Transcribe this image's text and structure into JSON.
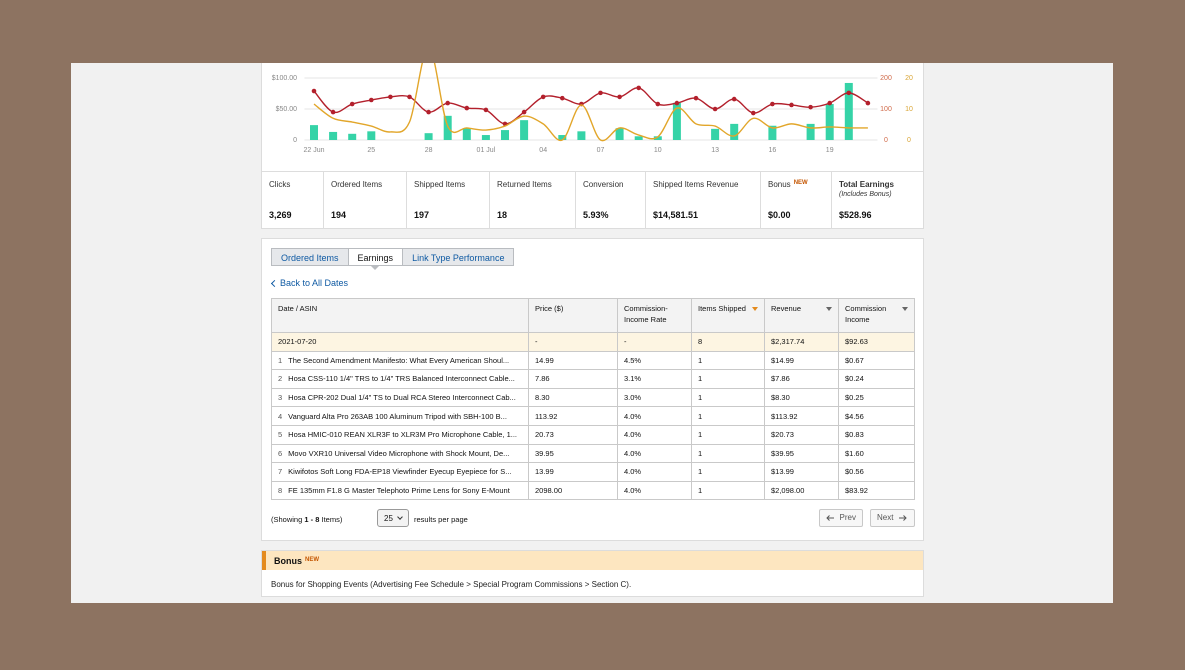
{
  "chart_data": {
    "type": "combo",
    "categories": [
      "22 Jun",
      null,
      null,
      "25",
      null,
      null,
      "28",
      null,
      null,
      "01 Jul",
      null,
      null,
      "04",
      null,
      null,
      "07",
      null,
      null,
      "10",
      null,
      null,
      "13",
      null,
      null,
      "16",
      null,
      null,
      "19",
      null,
      null
    ],
    "ylim": [
      0,
      125
    ],
    "yticks": [
      0,
      {
        "value": 50,
        "label": "$50.00"
      },
      {
        "value": 100,
        "label": "$100.00"
      }
    ],
    "y2lim": [
      0,
      250
    ],
    "y2ticks": [
      0,
      100,
      200
    ],
    "y3lim": [
      0,
      25
    ],
    "y3ticks": [
      0,
      10,
      20
    ],
    "grid": true,
    "series": [
      {
        "type": "bar",
        "color": "#35d3a7",
        "values": [
          24,
          13,
          10,
          14,
          0,
          0,
          11,
          39,
          19,
          8,
          16,
          32,
          0,
          8,
          14,
          0,
          19,
          6,
          6,
          60,
          0,
          18,
          26,
          0,
          23,
          0,
          26,
          58,
          92,
          0
        ]
      },
      {
        "type": "line",
        "axis": "y2",
        "color": "#b3202c",
        "markers": true,
        "values": [
          158,
          90,
          116,
          129,
          139,
          139,
          90,
          119,
          103,
          97,
          52,
          90,
          139,
          135,
          116,
          152,
          139,
          168,
          116,
          119,
          135,
          100,
          132,
          87,
          116,
          113,
          106,
          119,
          152,
          119
        ]
      },
      {
        "type": "line",
        "axis": "y3",
        "color": "#e2a62a",
        "markers": false,
        "values": [
          11.6,
          7,
          5.8,
          4.5,
          2.6,
          5.8,
          30,
          4.5,
          3.9,
          3.2,
          4.5,
          7.7,
          5.2,
          0,
          11.3,
          0,
          3.9,
          1.6,
          1,
          10.3,
          5.2,
          4.5,
          1.3,
          7,
          3.9,
          5.2,
          3.9,
          4.2,
          3.9,
          3.9
        ]
      }
    ]
  },
  "summary": [
    {
      "label": "Clicks",
      "value": "3,269"
    },
    {
      "label": "Ordered Items",
      "value": "194"
    },
    {
      "label": "Shipped Items",
      "value": "197"
    },
    {
      "label": "Returned Items",
      "value": "18"
    },
    {
      "label": "Conversion",
      "value": "5.93%"
    },
    {
      "label": "Shipped Items Revenue",
      "value": "$14,581.51"
    },
    {
      "label": "Bonus",
      "badge": "NEW",
      "value": "$0.00"
    },
    {
      "label": "Total Earnings",
      "note": "(Includes Bonus)",
      "value": "$528.96"
    }
  ],
  "tabs": [
    "Ordered Items",
    "Earnings",
    "Link Type Performance"
  ],
  "active_tab": 1,
  "back_link": "Back to All Dates",
  "table": {
    "columns": [
      "Date / ASIN",
      "Price ($)",
      "Commission-Income Rate",
      "Items Shipped",
      "Revenue",
      "Commission Income"
    ],
    "date_row": [
      "2021-07-20",
      "-",
      "-",
      "8",
      "$2,317.74",
      "$92.63"
    ],
    "rows": [
      [
        "1",
        "The Second Amendment Manifesto: What Every American Shoul...",
        "14.99",
        "4.5%",
        "1",
        "$14.99",
        "$0.67"
      ],
      [
        "2",
        "Hosa CSS-110 1/4\" TRS to 1/4\" TRS Balanced Interconnect Cable...",
        "7.86",
        "3.1%",
        "1",
        "$7.86",
        "$0.24"
      ],
      [
        "3",
        "Hosa CPR-202 Dual 1/4\" TS to Dual RCA Stereo Interconnect Cab...",
        "8.30",
        "3.0%",
        "1",
        "$8.30",
        "$0.25"
      ],
      [
        "4",
        "Vanguard Alta Pro 263AB 100 Aluminum Tripod with SBH-100 B...",
        "113.92",
        "4.0%",
        "1",
        "$113.92",
        "$4.56"
      ],
      [
        "5",
        "Hosa HMIC-010 REAN XLR3F to XLR3M Pro Microphone Cable, 1...",
        "20.73",
        "4.0%",
        "1",
        "$20.73",
        "$0.83"
      ],
      [
        "6",
        "Movo VXR10 Universal Video Microphone with Shock Mount, De...",
        "39.95",
        "4.0%",
        "1",
        "$39.95",
        "$1.60"
      ],
      [
        "7",
        "Kiwifotos Soft Long FDA-EP18 Viewfinder Eyecup Eyepiece for S...",
        "13.99",
        "4.0%",
        "1",
        "$13.99",
        "$0.56"
      ],
      [
        "8",
        "FE 135mm F1.8 G Master Telephoto Prime Lens for Sony E-Mount",
        "2098.00",
        "4.0%",
        "1",
        "$2,098.00",
        "$83.92"
      ]
    ]
  },
  "pagination": {
    "showing": "(Showing",
    "range": "1 - 8",
    "items": "Items)",
    "page_size": "25",
    "per_page": "results per page",
    "prev": "Prev",
    "next": "Next"
  },
  "bonus": {
    "title": "Bonus",
    "badge": "NEW",
    "text": "Bonus for Shopping Events (Advertising Fee Schedule > Special Program Commissions > Section C)."
  }
}
